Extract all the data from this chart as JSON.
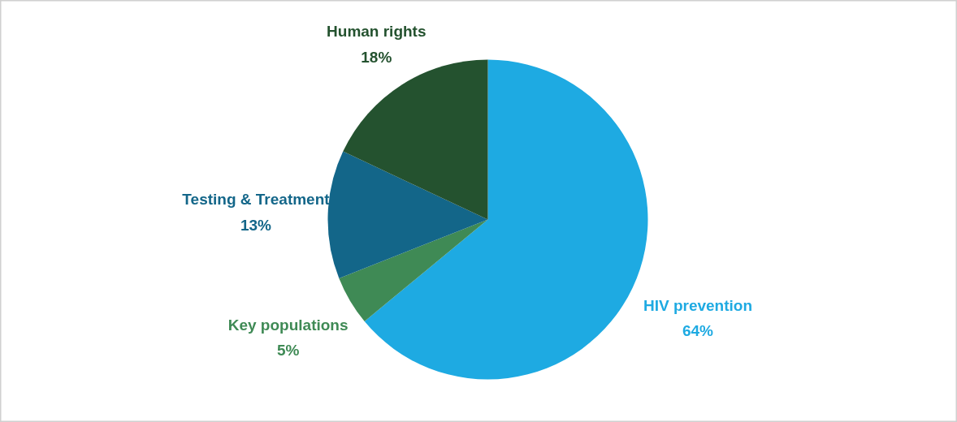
{
  "chart_data": {
    "type": "pie",
    "categories": [
      "HIV prevention",
      "Key populations",
      "Testing & Treatment",
      "Human rights"
    ],
    "values": [
      64,
      5,
      13,
      18
    ],
    "value_labels": [
      "64%",
      "5%",
      "13%",
      "18%"
    ],
    "colors": [
      "#1eaae2",
      "#3f8a55",
      "#136689",
      "#24522f"
    ]
  }
}
